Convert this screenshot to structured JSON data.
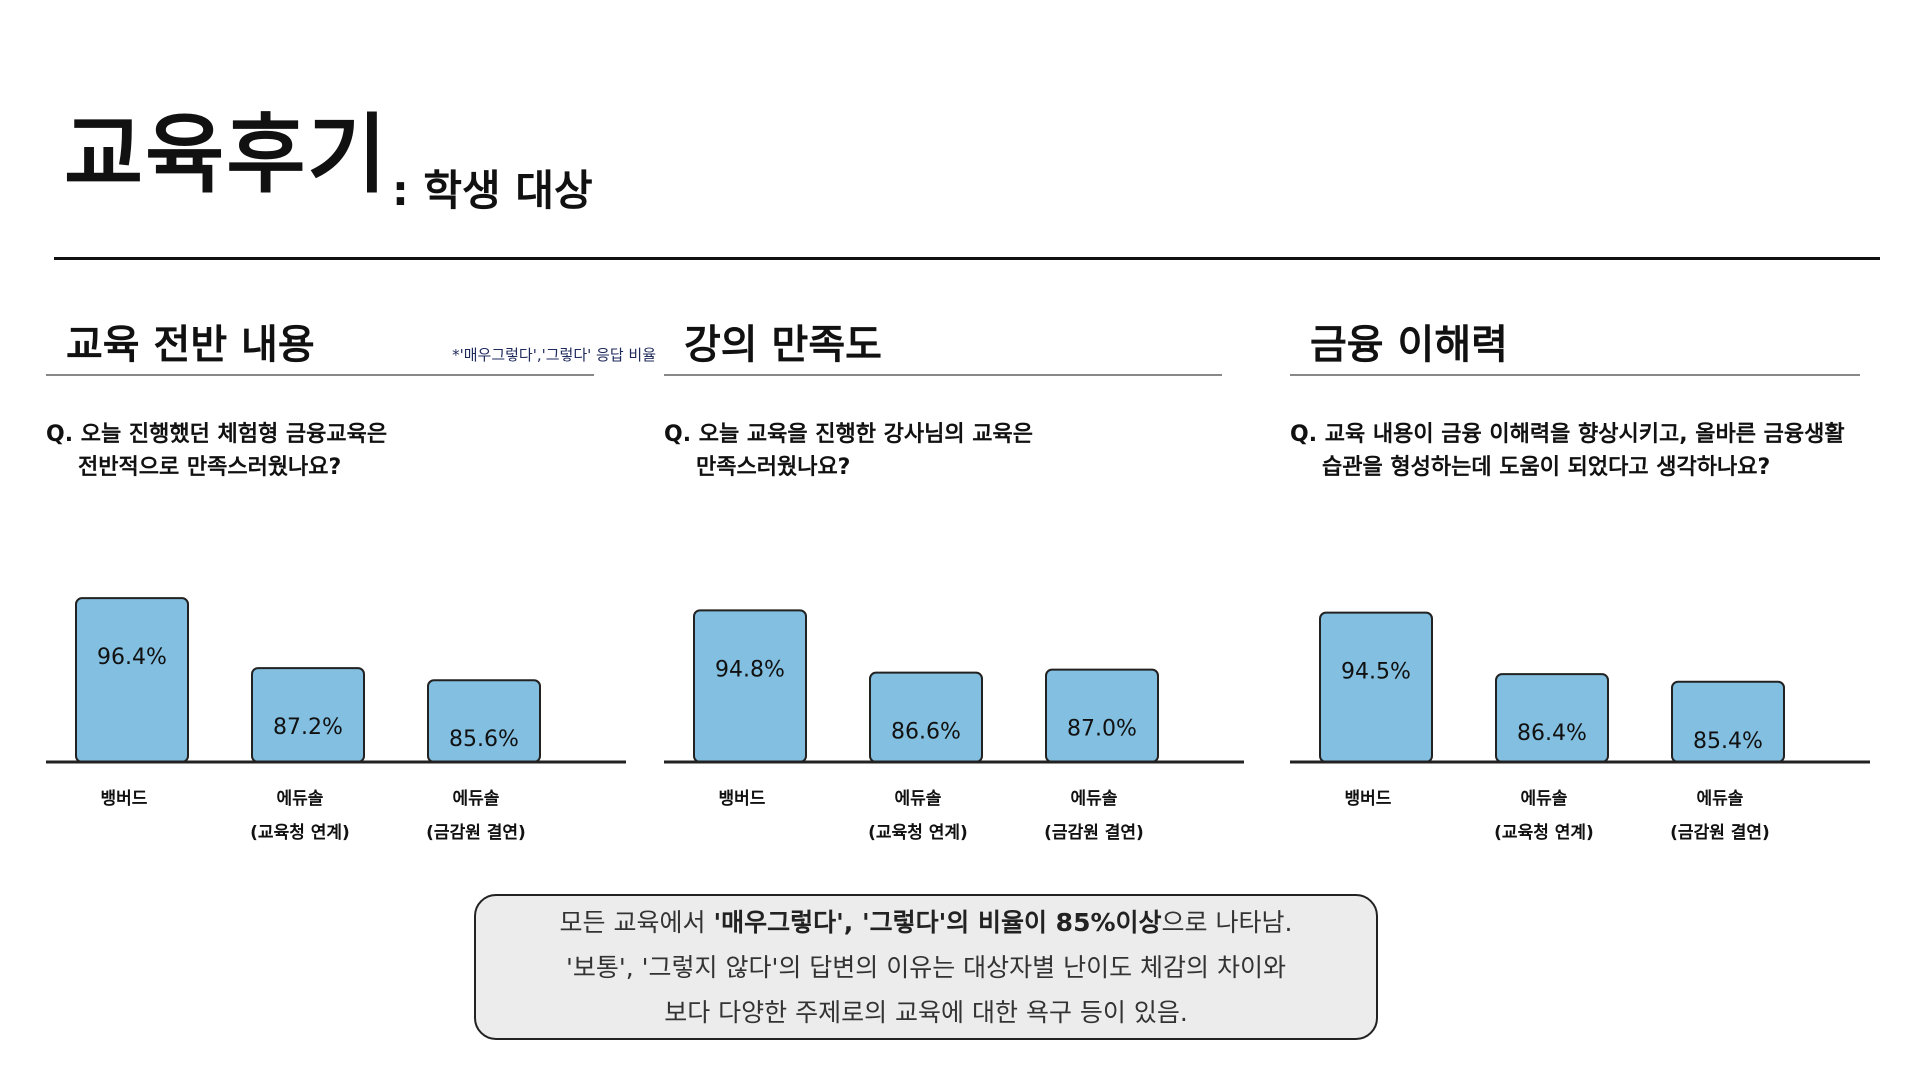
{
  "header": {
    "title": "교육후기",
    "subtitle": ": 학생 대상"
  },
  "colors": {
    "bar": "#82bfe0",
    "text": "#111111",
    "summary_bg": "#ececec"
  },
  "panels": [
    {
      "title": "교육 전반 내용",
      "note": "*'매우그렇다','그렇다' 응답 비율",
      "question_line1": "Q. 오늘 진행했던 체험형 금융교육은",
      "question_line2": "전반적으로 만족스러웠나요?"
    },
    {
      "title": "강의 만족도",
      "note": "",
      "question_line1": "Q. 오늘 교육을 진행한 강사님의 교육은",
      "question_line2": "만족스러웠나요?"
    },
    {
      "title": "금융 이해력",
      "note": "",
      "question_line1": "Q. 교육 내용이 금융 이해력을 향상시키고, 올바른 금융생활",
      "question_line2": "습관을 형성하는데 도움이 되었다고 생각하나요?"
    }
  ],
  "chart_data": [
    {
      "type": "bar",
      "categories": [
        [
          "뱅버드"
        ],
        [
          "에듀솔",
          "(교육청 연계)"
        ],
        [
          "에듀솔",
          "(금감원 결연)"
        ]
      ],
      "values": [
        96.4,
        87.2,
        85.6
      ],
      "labels": [
        "96.4%",
        "87.2%",
        "85.6%"
      ],
      "ylim": [
        0,
        100
      ]
    },
    {
      "type": "bar",
      "categories": [
        [
          "뱅버드"
        ],
        [
          "에듀솔",
          "(교육청 연계)"
        ],
        [
          "에듀솔",
          "(금감원 결연)"
        ]
      ],
      "values": [
        94.8,
        86.6,
        87.0
      ],
      "labels": [
        "94.8%",
        "86.6%",
        "87.0%"
      ],
      "ylim": [
        0,
        100
      ]
    },
    {
      "type": "bar",
      "categories": [
        [
          "뱅버드"
        ],
        [
          "에듀솔",
          "(교육청 연계)"
        ],
        [
          "에듀솔",
          "(금감원 결연)"
        ]
      ],
      "values": [
        94.5,
        86.4,
        85.4
      ],
      "labels": [
        "94.5%",
        "86.4%",
        "85.4%"
      ],
      "ylim": [
        0,
        100
      ]
    }
  ],
  "summary": {
    "line1_prefix": "모든 교육에서 ",
    "line1_bold": "'매우그렇다', '그렇다'의 비율이 85%이상",
    "line1_suffix": "으로 나타남.",
    "line2": "'보통', '그렇지 않다'의 답변의 이유는 대상자별 난이도 체감의 차이와",
    "line3": "보다 다양한 주제로의 교육에 대한 욕구 등이 있음."
  }
}
